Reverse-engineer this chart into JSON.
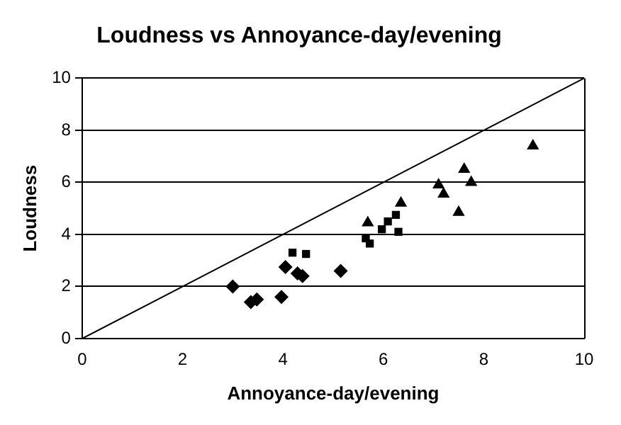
{
  "chart_data": {
    "type": "scatter",
    "title": "Loudness vs Annoyance-day/evening",
    "xlabel": "Annoyance-day/evening",
    "ylabel": "Loudness",
    "xlim": [
      0,
      10
    ],
    "ylim": [
      0,
      10
    ],
    "xticks": [
      0,
      2,
      4,
      6,
      8,
      10
    ],
    "yticks": [
      0,
      2,
      4,
      6,
      8,
      10
    ],
    "grid": "y",
    "legend": false,
    "series": [
      {
        "color": "#000000",
        "marker": "diamond",
        "x": [
          3.0,
          3.36,
          3.48,
          3.97,
          4.05,
          4.29,
          4.39,
          5.15
        ],
        "values": [
          2.0,
          1.4,
          1.5,
          1.6,
          2.75,
          2.5,
          2.4,
          2.6
        ]
      },
      {
        "color": "#000000",
        "marker": "square",
        "x": [
          4.19,
          4.46,
          5.65,
          5.73,
          5.97,
          6.09,
          6.25,
          6.3
        ],
        "values": [
          3.3,
          3.25,
          3.85,
          3.65,
          4.2,
          4.5,
          4.75,
          4.1
        ]
      },
      {
        "color": "#000000",
        "marker": "triangle",
        "x": [
          5.69,
          6.35,
          7.1,
          7.2,
          7.5,
          7.61,
          7.75,
          8.98
        ],
        "values": [
          4.45,
          5.2,
          5.9,
          5.55,
          4.85,
          6.5,
          6.0,
          7.4
        ]
      },
      {
        "type": "line",
        "color": "#000000",
        "marker": "none",
        "x": [
          0,
          10
        ],
        "values": [
          0,
          10
        ]
      }
    ]
  }
}
